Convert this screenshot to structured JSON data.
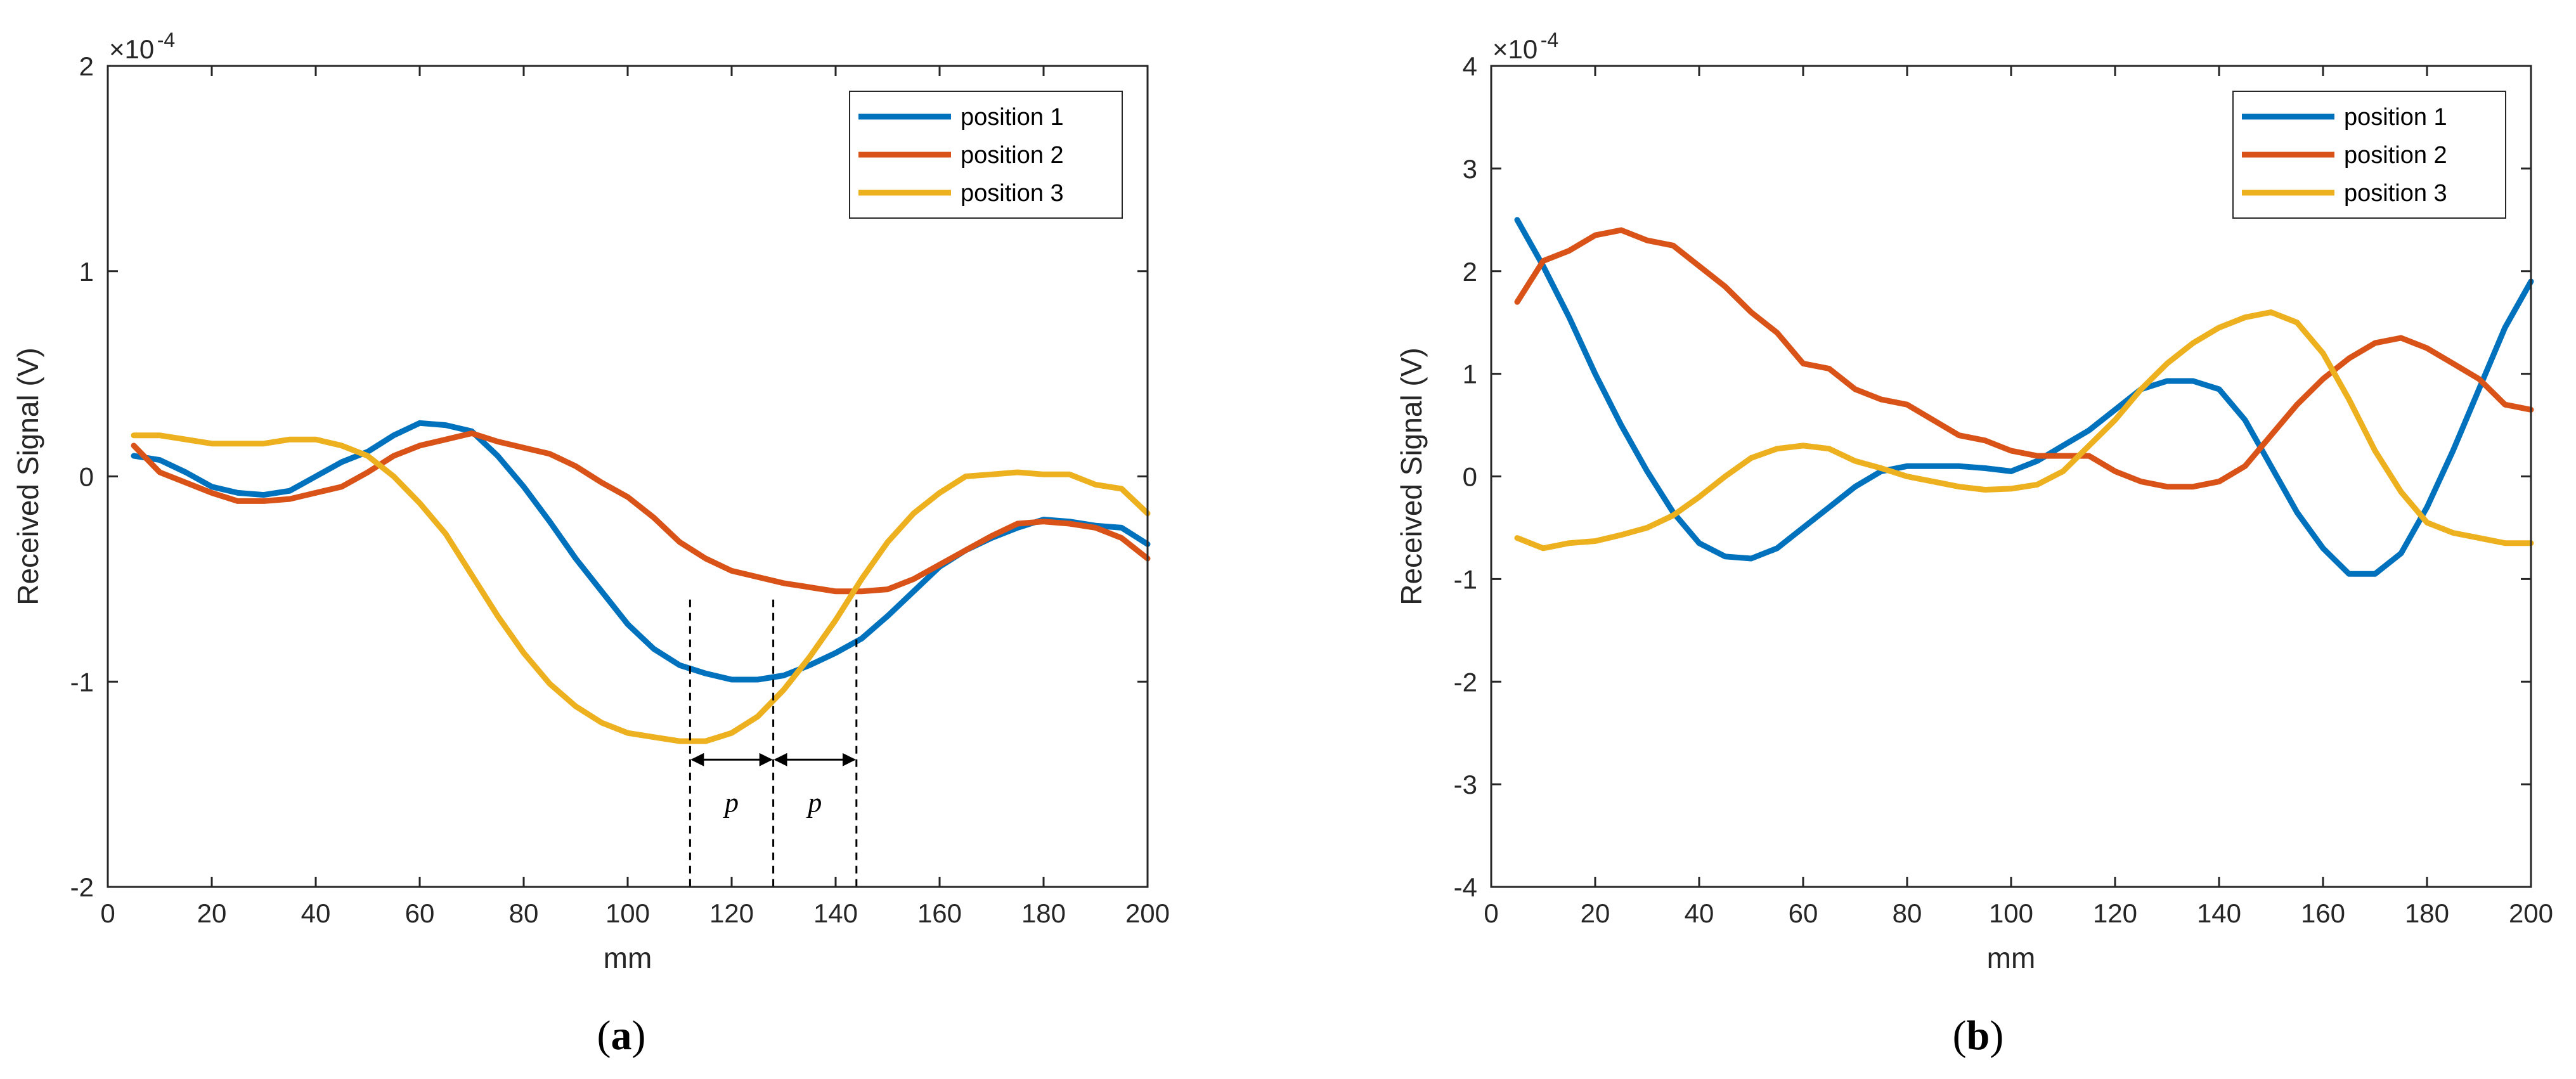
{
  "colors": {
    "position_1": "#0072BD",
    "position_2": "#D95319",
    "position_3": "#EDB120",
    "axis": "#262626"
  },
  "chart_data": [
    {
      "panel": "(a)",
      "caption_paren_open": "(",
      "caption_letter": "a",
      "caption_paren_close": ")",
      "type": "line",
      "xlabel": "mm",
      "ylabel": "Received Signal (V)",
      "exponent_base": "×10",
      "exponent_power": "-4",
      "xlim": [
        0,
        200
      ],
      "ylim": [
        -2,
        2
      ],
      "xticks": [
        0,
        20,
        40,
        60,
        80,
        100,
        120,
        140,
        160,
        180,
        200
      ],
      "yticks": [
        -2,
        -1,
        0,
        1,
        2
      ],
      "legend_position": "top-right",
      "grid": false,
      "x": [
        5,
        10,
        15,
        20,
        25,
        30,
        35,
        40,
        45,
        50,
        55,
        60,
        65,
        70,
        75,
        80,
        85,
        90,
        95,
        100,
        105,
        110,
        115,
        120,
        125,
        130,
        135,
        140,
        145,
        150,
        155,
        160,
        165,
        170,
        175,
        180,
        185,
        190,
        195,
        200
      ],
      "series": [
        {
          "name": "position 1",
          "values": [
            0.1,
            0.08,
            0.02,
            -0.05,
            -0.08,
            -0.09,
            -0.07,
            0.0,
            0.07,
            0.12,
            0.2,
            0.26,
            0.25,
            0.22,
            0.1,
            -0.05,
            -0.22,
            -0.4,
            -0.56,
            -0.72,
            -0.84,
            -0.92,
            -0.96,
            -0.99,
            -0.99,
            -0.97,
            -0.92,
            -0.86,
            -0.79,
            -0.68,
            -0.56,
            -0.44,
            -0.36,
            -0.3,
            -0.25,
            -0.21,
            -0.22,
            -0.24,
            -0.25,
            -0.33
          ]
        },
        {
          "name": "position 2",
          "values": [
            0.15,
            0.02,
            -0.03,
            -0.08,
            -0.12,
            -0.12,
            -0.11,
            -0.08,
            -0.05,
            0.02,
            0.1,
            0.15,
            0.18,
            0.21,
            0.17,
            0.14,
            0.11,
            0.05,
            -0.03,
            -0.1,
            -0.2,
            -0.32,
            -0.4,
            -0.46,
            -0.49,
            -0.52,
            -0.54,
            -0.56,
            -0.56,
            -0.55,
            -0.5,
            -0.43,
            -0.36,
            -0.29,
            -0.23,
            -0.22,
            -0.23,
            -0.25,
            -0.3,
            -0.4
          ]
        },
        {
          "name": "position 3",
          "values": [
            0.2,
            0.2,
            0.18,
            0.16,
            0.16,
            0.16,
            0.18,
            0.18,
            0.15,
            0.1,
            0.0,
            -0.13,
            -0.28,
            -0.48,
            -0.68,
            -0.86,
            -1.01,
            -1.12,
            -1.2,
            -1.25,
            -1.27,
            -1.29,
            -1.29,
            -1.25,
            -1.17,
            -1.04,
            -0.88,
            -0.7,
            -0.5,
            -0.32,
            -0.18,
            -0.08,
            0.0,
            0.01,
            0.02,
            0.01,
            0.01,
            -0.04,
            -0.06,
            -0.18
          ]
        }
      ],
      "annotations": {
        "marker_x": [
          112,
          128,
          144
        ],
        "marker_y_top": -0.6,
        "arrow_y": -1.38,
        "p_label_1": "p",
        "p_label_2": "p"
      }
    },
    {
      "panel": "(b)",
      "caption_paren_open": "(",
      "caption_letter": "b",
      "caption_paren_close": ")",
      "type": "line",
      "xlabel": "mm",
      "ylabel": "Received Signal (V)",
      "exponent_base": "×10",
      "exponent_power": "-4",
      "xlim": [
        0,
        200
      ],
      "ylim": [
        -4,
        4
      ],
      "xticks": [
        0,
        20,
        40,
        60,
        80,
        100,
        120,
        140,
        160,
        180,
        200
      ],
      "yticks": [
        -4,
        -3,
        -2,
        -1,
        0,
        1,
        2,
        3,
        4
      ],
      "legend_position": "top-right",
      "grid": false,
      "x": [
        5,
        10,
        15,
        20,
        25,
        30,
        35,
        40,
        45,
        50,
        55,
        60,
        65,
        70,
        75,
        80,
        85,
        90,
        95,
        100,
        105,
        110,
        115,
        120,
        125,
        130,
        135,
        140,
        145,
        150,
        155,
        160,
        165,
        170,
        175,
        180,
        185,
        190,
        195,
        200
      ],
      "series": [
        {
          "name": "position 1",
          "values": [
            2.5,
            2.05,
            1.55,
            1.0,
            0.5,
            0.05,
            -0.35,
            -0.65,
            -0.78,
            -0.8,
            -0.7,
            -0.5,
            -0.3,
            -0.1,
            0.05,
            0.1,
            0.1,
            0.1,
            0.08,
            0.05,
            0.15,
            0.3,
            0.45,
            0.65,
            0.85,
            0.93,
            0.93,
            0.85,
            0.55,
            0.1,
            -0.35,
            -0.7,
            -0.95,
            -0.95,
            -0.75,
            -0.3,
            0.25,
            0.85,
            1.45,
            1.9
          ]
        },
        {
          "name": "position 2",
          "values": [
            1.7,
            2.1,
            2.2,
            2.35,
            2.4,
            2.3,
            2.25,
            2.05,
            1.85,
            1.6,
            1.4,
            1.1,
            1.05,
            0.85,
            0.75,
            0.7,
            0.55,
            0.4,
            0.35,
            0.25,
            0.2,
            0.2,
            0.2,
            0.05,
            -0.05,
            -0.1,
            -0.1,
            -0.05,
            0.1,
            0.4,
            0.7,
            0.95,
            1.15,
            1.3,
            1.35,
            1.25,
            1.1,
            0.95,
            0.7,
            0.65
          ]
        },
        {
          "name": "position 3",
          "values": [
            -0.6,
            -0.7,
            -0.65,
            -0.63,
            -0.57,
            -0.5,
            -0.38,
            -0.2,
            0.0,
            0.18,
            0.27,
            0.3,
            0.27,
            0.15,
            0.08,
            0.0,
            -0.05,
            -0.1,
            -0.13,
            -0.12,
            -0.08,
            0.05,
            0.3,
            0.55,
            0.85,
            1.1,
            1.3,
            1.45,
            1.55,
            1.6,
            1.5,
            1.2,
            0.75,
            0.25,
            -0.15,
            -0.45,
            -0.55,
            -0.6,
            -0.65,
            -0.65
          ]
        }
      ]
    }
  ]
}
